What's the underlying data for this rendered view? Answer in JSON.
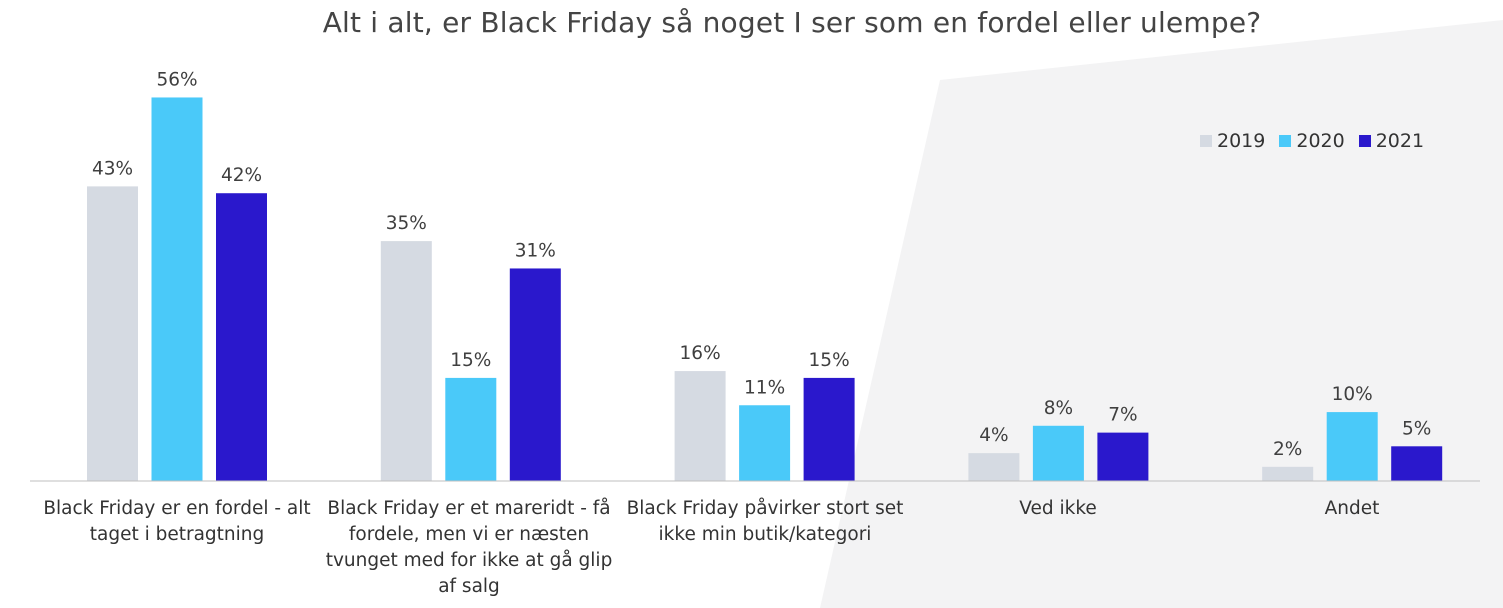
{
  "chart_data": {
    "type": "bar",
    "title": "Alt i alt, er Black Friday så noget I ser som en fordel eller ulempe?",
    "categories": [
      "Black Friday er en fordel - alt taget i betragtning",
      "Black Friday er et mareridt - få fordele, men vi er næsten tvunget med for ikke at gå glip af salg",
      "Black Friday påvirker stort set ikke min butik/kategori",
      "Ved ikke",
      "Andet"
    ],
    "series": [
      {
        "name": "2019",
        "color": "#d5dae2",
        "values": [
          43,
          35,
          16,
          4,
          2
        ]
      },
      {
        "name": "2020",
        "color": "#4ac9f9",
        "values": [
          56,
          15,
          11,
          8,
          10
        ]
      },
      {
        "name": "2021",
        "color": "#2a18cc",
        "values": [
          42,
          31,
          15,
          7,
          5
        ]
      }
    ],
    "value_suffix": "%",
    "ylim": [
      0,
      60
    ],
    "legend_position": "top-right",
    "grid": false
  }
}
